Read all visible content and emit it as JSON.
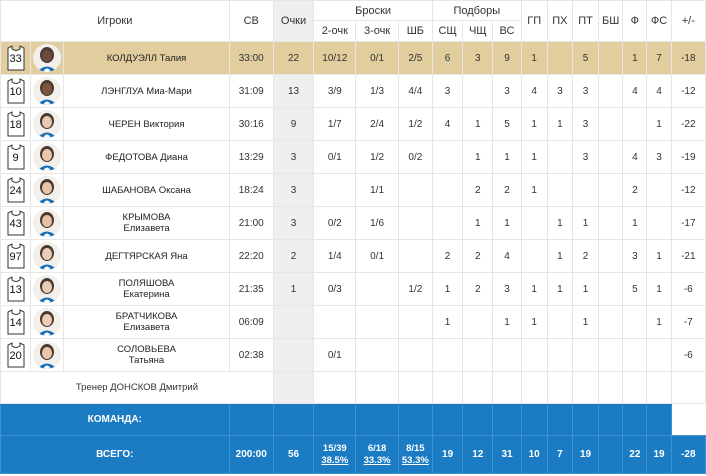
{
  "header": {
    "players": "Игроки",
    "time": "СВ",
    "points": "Очки",
    "shots": "Броски",
    "rebounds": "Подборы",
    "two_pt": "2-очк",
    "three_pt": "3-очк",
    "ft": "ШБ",
    "oreb": "СЩ",
    "dreb": "ЧЩ",
    "reb": "ВС",
    "ast": "ГП",
    "stl": "ПХ",
    "tov": "ПТ",
    "blk": "БШ",
    "pf": "Ф",
    "fd": "ФС",
    "plusminus": "+/-"
  },
  "players": [
    {
      "number": "33",
      "name1": "КОЛДУЭЛЛ Талия",
      "name2": "",
      "time": "33:00",
      "pts": "22",
      "two": "10/12",
      "three": "0/1",
      "ft": "2/5",
      "oreb": "6",
      "dreb": "3",
      "reb": "9",
      "ast": "1",
      "stl": "",
      "tov": "5",
      "blk": "",
      "pf": "1",
      "fd": "7",
      "pm": "-18",
      "highlight": true,
      "skin": "#6b4a3a"
    },
    {
      "number": "10",
      "name1": "ЛЭНГЛУА Миа-Мари",
      "name2": "",
      "time": "31:09",
      "pts": "13",
      "two": "3/9",
      "three": "1/3",
      "ft": "4/4",
      "oreb": "3",
      "dreb": "",
      "reb": "3",
      "ast": "4",
      "stl": "3",
      "tov": "3",
      "blk": "",
      "pf": "4",
      "fd": "4",
      "pm": "-12",
      "highlight": false,
      "skin": "#7a553f"
    },
    {
      "number": "18",
      "name1": "ЧЕРЕН Виктория",
      "name2": "",
      "time": "30:16",
      "pts": "9",
      "two": "1/7",
      "three": "2/4",
      "ft": "1/2",
      "oreb": "4",
      "dreb": "1",
      "reb": "5",
      "ast": "1",
      "stl": "1",
      "tov": "3",
      "blk": "",
      "pf": "",
      "fd": "1",
      "pm": "-22",
      "highlight": false,
      "skin": "#e8c9b2"
    },
    {
      "number": "9",
      "name1": "ФЕДОТОВА Диана",
      "name2": "",
      "time": "13:29",
      "pts": "3",
      "two": "0/1",
      "three": "1/2",
      "ft": "0/2",
      "oreb": "",
      "dreb": "1",
      "reb": "1",
      "ast": "1",
      "stl": "",
      "tov": "3",
      "blk": "",
      "pf": "4",
      "fd": "3",
      "pm": "-19",
      "highlight": false,
      "skin": "#e9c8ae"
    },
    {
      "number": "24",
      "name1": "ШАБАНОВА Оксана",
      "name2": "",
      "time": "18:24",
      "pts": "3",
      "two": "",
      "three": "1/1",
      "ft": "",
      "oreb": "",
      "dreb": "2",
      "reb": "2",
      "ast": "1",
      "stl": "",
      "tov": "",
      "blk": "",
      "pf": "2",
      "fd": "",
      "pm": "-12",
      "highlight": false,
      "skin": "#e7c5ab"
    },
    {
      "number": "43",
      "name1": "КРЫМОВА",
      "name2": "Елизавета",
      "time": "21:00",
      "pts": "3",
      "two": "0/2",
      "three": "1/6",
      "ft": "",
      "oreb": "",
      "dreb": "1",
      "reb": "1",
      "ast": "",
      "stl": "1",
      "tov": "1",
      "blk": "",
      "pf": "1",
      "fd": "",
      "pm": "-17",
      "highlight": false,
      "skin": "#e3c0a6"
    },
    {
      "number": "97",
      "name1": "ДЕГТЯРСКАЯ Яна",
      "name2": "",
      "time": "22:20",
      "pts": "2",
      "two": "1/4",
      "three": "0/1",
      "ft": "",
      "oreb": "2",
      "dreb": "2",
      "reb": "4",
      "ast": "",
      "stl": "1",
      "tov": "2",
      "blk": "",
      "pf": "3",
      "fd": "1",
      "pm": "-21",
      "highlight": false,
      "skin": "#eccdb6"
    },
    {
      "number": "13",
      "name1": "ПОЛЯШОВА",
      "name2": "Екатерина",
      "time": "21:35",
      "pts": "1",
      "two": "0/3",
      "three": "",
      "ft": "1/2",
      "oreb": "1",
      "dreb": "2",
      "reb": "3",
      "ast": "1",
      "stl": "1",
      "tov": "1",
      "blk": "",
      "pf": "5",
      "fd": "1",
      "pm": "-6",
      "highlight": false,
      "skin": "#eacbb3"
    },
    {
      "number": "14",
      "name1": "БРАТЧИКОВА",
      "name2": "Елизавета",
      "time": "06:09",
      "pts": "",
      "two": "",
      "three": "",
      "ft": "",
      "oreb": "1",
      "dreb": "",
      "reb": "1",
      "ast": "1",
      "stl": "",
      "tov": "1",
      "blk": "",
      "pf": "",
      "fd": "1",
      "pm": "-7",
      "highlight": false,
      "skin": "#ecceb8"
    },
    {
      "number": "20",
      "name1": "СОЛОВЬЕВА",
      "name2": "Татьяна",
      "time": "02:38",
      "pts": "",
      "two": "0/1",
      "three": "",
      "ft": "",
      "oreb": "",
      "dreb": "",
      "reb": "",
      "ast": "",
      "stl": "",
      "tov": "",
      "blk": "",
      "pf": "",
      "fd": "",
      "pm": "-6",
      "highlight": false,
      "skin": "#e9c7ad"
    }
  ],
  "coach": "Тренер ДОНСКОВ Дмитрий",
  "team": {
    "label": "КОМАНДА:"
  },
  "total": {
    "label": "ВСЕГО:",
    "time": "200:00",
    "pts": "56",
    "two": "15/39",
    "two_pct": "38.5%",
    "three": "6/18",
    "three_pct": "33.3%",
    "ft": "8/15",
    "ft_pct": "53.3%",
    "oreb": "19",
    "dreb": "12",
    "reb": "31",
    "ast": "10",
    "stl": "7",
    "tov": "19",
    "blk": "",
    "pf": "22",
    "fd": "19",
    "pm": "-28"
  },
  "colors": {
    "highlight_row": "#e1cd9e",
    "points_column": "#efefef",
    "team_footer": "#1b7cc3"
  },
  "icons": {
    "jersey": "jersey-icon",
    "avatar": "player-avatar"
  }
}
